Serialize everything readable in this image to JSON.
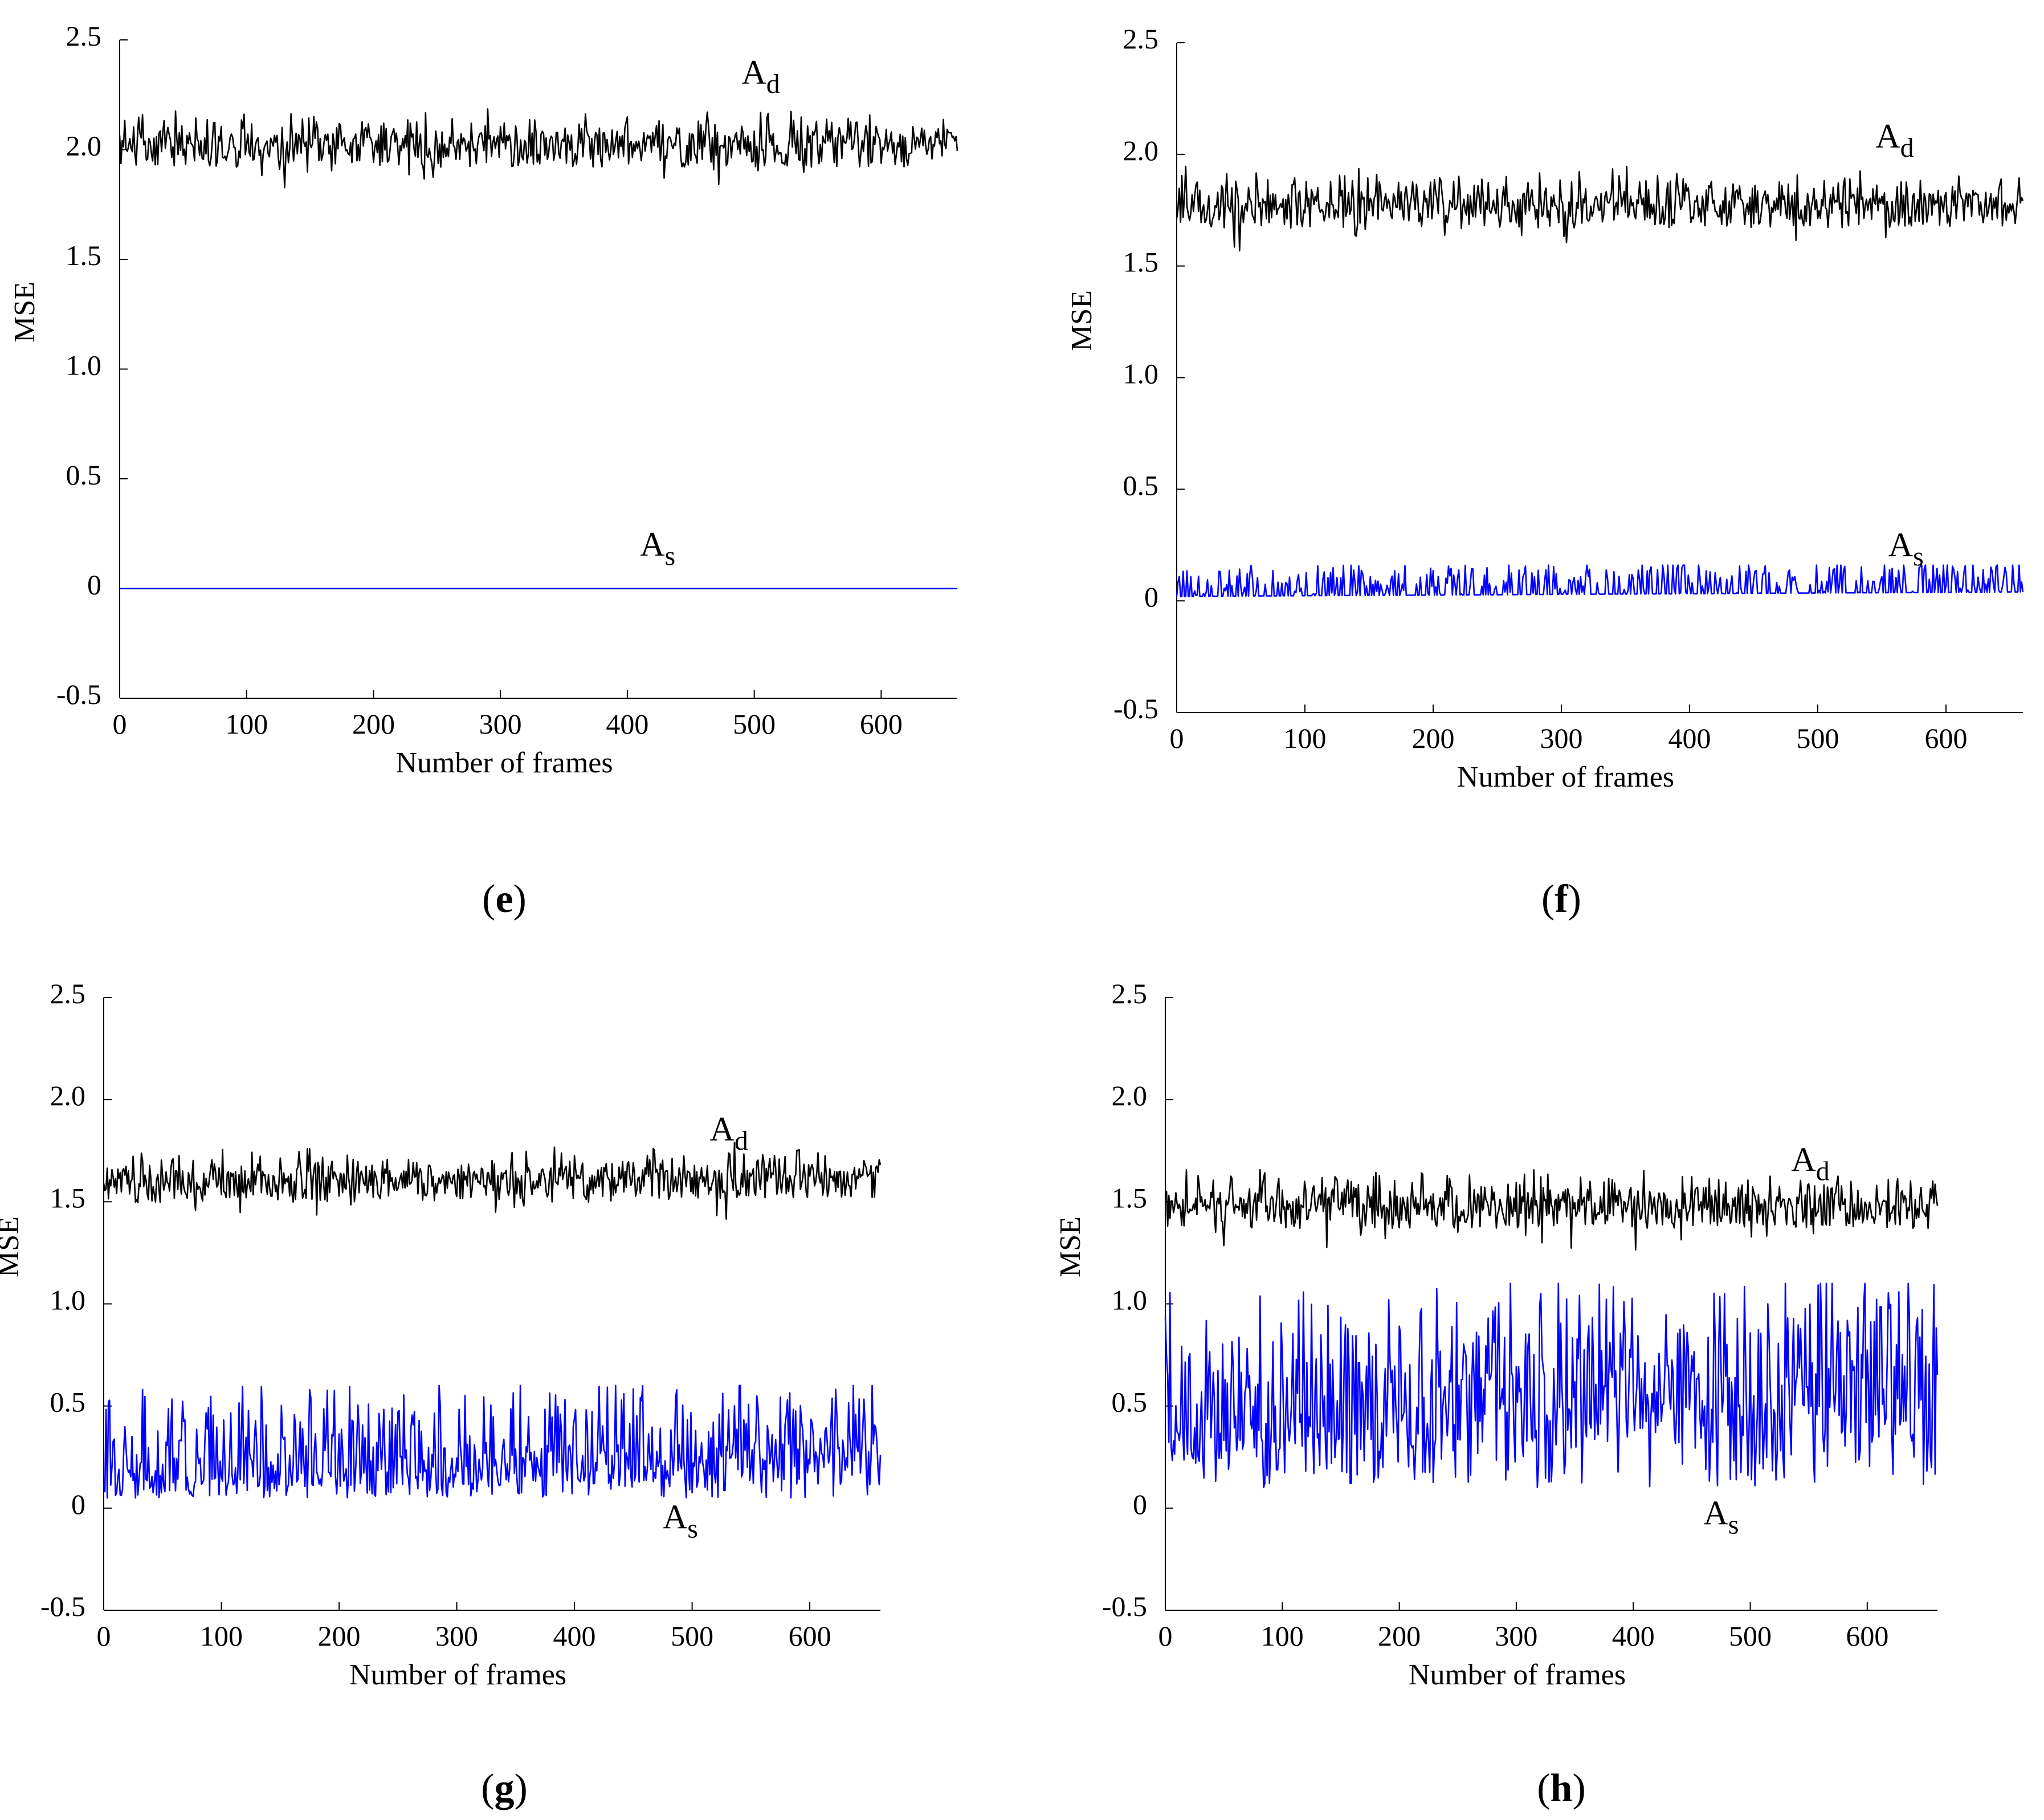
{
  "chart_data": [
    {
      "type": "line",
      "panel_label": "e",
      "xlabel": "Number of frames",
      "ylabel": "MSE",
      "xlim": [
        0,
        660
      ],
      "ylim": [
        -0.5,
        2.5
      ],
      "x_ticks": [
        0,
        100,
        200,
        300,
        400,
        500,
        600
      ],
      "y_ticks": [
        "-0.5",
        "0",
        "0.5",
        "1.0",
        "1.5",
        "2.0",
        "2.5"
      ],
      "series": [
        {
          "name": "Ad",
          "label_main": "A",
          "label_sub": "d",
          "color": "#000000",
          "mean": 2.0,
          "noise": 0.05,
          "spike": 0.12,
          "trend": 0.0,
          "base": 0.0,
          "min": 1.72,
          "max": 2.2,
          "seed": 11
        },
        {
          "name": "As",
          "label_main": "A",
          "label_sub": "s",
          "color": "#0000ff",
          "mean": 0.0,
          "noise": 0.0,
          "spike": 0.0,
          "trend": 0.0,
          "base": 0.0,
          "min": 0.0,
          "max": 0.0,
          "seed": 12
        }
      ],
      "annotations": [
        {
          "series": "Ad",
          "x": 490,
          "y": 2.3
        },
        {
          "series": "As",
          "x": 410,
          "y": 0.15
        }
      ]
    },
    {
      "type": "line",
      "panel_label": "f",
      "xlabel": "Number of frames",
      "ylabel": "MSE",
      "xlim": [
        0,
        660
      ],
      "ylim": [
        -0.5,
        2.5
      ],
      "x_ticks": [
        0,
        100,
        200,
        300,
        400,
        500,
        600
      ],
      "y_ticks": [
        "-0.5",
        "0",
        "0.5",
        "1.0",
        "1.5",
        "2.0",
        "2.5"
      ],
      "series": [
        {
          "name": "Ad",
          "label_main": "A",
          "label_sub": "d",
          "color": "#000000",
          "mean": 1.75,
          "noise": 0.05,
          "spike": 0.12,
          "trend": 0.0,
          "base": 0.0,
          "min": 1.52,
          "max": 2.0,
          "seed": 21
        },
        {
          "name": "As",
          "label_main": "A",
          "label_sub": "s",
          "color": "#0000ff",
          "mean": 0.02,
          "noise": 0.0,
          "spike": 0.14,
          "trend": 0.02,
          "base": 0.0,
          "min": 0.0,
          "max": 0.16,
          "seed": 22
        }
      ],
      "annotations": [
        {
          "series": "Ad",
          "x": 545,
          "y": 2.03
        },
        {
          "series": "As",
          "x": 555,
          "y": 0.2
        }
      ]
    },
    {
      "type": "line",
      "panel_label": "g",
      "xlabel": "Number of frames",
      "ylabel": "MSE",
      "xlim": [
        0,
        660
      ],
      "ylim": [
        -0.5,
        2.5
      ],
      "x_ticks": [
        0,
        100,
        200,
        300,
        400,
        500,
        600
      ],
      "y_ticks": [
        "-0.5",
        "0",
        "0.5",
        "1.0",
        "1.5",
        "2.0",
        "2.5"
      ],
      "series": [
        {
          "name": "Ad",
          "label_main": "A",
          "label_sub": "d",
          "color": "#000000",
          "mean": 1.57,
          "noise": 0.05,
          "spike": 0.12,
          "trend": 0.03,
          "base": 0.0,
          "min": 1.37,
          "max": 1.85,
          "seed": 31
        },
        {
          "name": "As",
          "label_main": "A",
          "label_sub": "s",
          "color": "#0000ff",
          "mean": 0.15,
          "noise": 0.06,
          "spike": 0.3,
          "trend": 0.12,
          "base": 0.05,
          "min": 0.02,
          "max": 0.6,
          "seed": 32
        }
      ],
      "annotations": [
        {
          "series": "Ad",
          "x": 515,
          "y": 1.8
        },
        {
          "series": "As",
          "x": 475,
          "y": -0.1
        }
      ]
    },
    {
      "type": "line",
      "panel_label": "h",
      "xlabel": "Number of frames",
      "ylabel": "MSE",
      "xlim": [
        0,
        660
      ],
      "ylim": [
        -0.5,
        2.5
      ],
      "x_ticks": [
        0,
        100,
        200,
        300,
        400,
        500,
        600
      ],
      "y_ticks": [
        "-0.5",
        "0",
        "0.5",
        "1.0",
        "1.5",
        "2.0",
        "2.5"
      ],
      "series": [
        {
          "name": "Ad",
          "label_main": "A",
          "label_sub": "d",
          "color": "#000000",
          "mean": 1.45,
          "noise": 0.05,
          "spike": 0.14,
          "trend": 0.0,
          "base": 0.0,
          "min": 1.22,
          "max": 1.8,
          "seed": 41
        },
        {
          "name": "As",
          "label_main": "A",
          "label_sub": "s",
          "color": "#0000ff",
          "mean": 0.4,
          "noise": 0.12,
          "spike": 0.45,
          "trend": 0.15,
          "base": 0.1,
          "min": 0.05,
          "max": 1.1,
          "seed": 42
        }
      ],
      "annotations": [
        {
          "series": "Ad",
          "x": 535,
          "y": 1.65
        },
        {
          "series": "As",
          "x": 460,
          "y": -0.08
        }
      ]
    }
  ]
}
